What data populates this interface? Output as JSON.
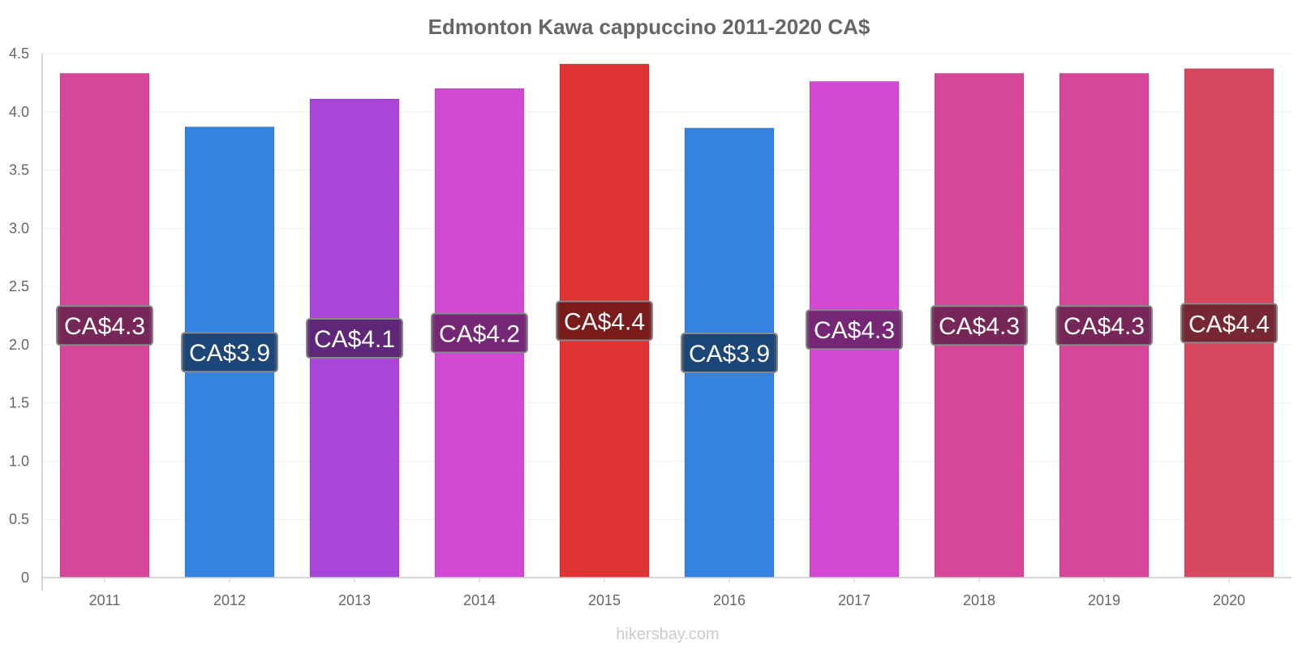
{
  "chart_data": {
    "type": "bar",
    "title": "Edmonton Kawa cappuccino 2011-2020 CA$",
    "categories": [
      "2011",
      "2012",
      "2013",
      "2014",
      "2015",
      "2016",
      "2017",
      "2018",
      "2019",
      "2020"
    ],
    "values": [
      4.33,
      3.87,
      4.11,
      4.2,
      4.41,
      3.86,
      4.26,
      4.33,
      4.33,
      4.37
    ],
    "data_labels": [
      "CA$4.3",
      "CA$3.9",
      "CA$4.1",
      "CA$4.2",
      "CA$4.4",
      "CA$3.9",
      "CA$4.3",
      "CA$4.3",
      "CA$4.3",
      "CA$4.4"
    ],
    "colors": [
      "#d6479a",
      "#3583e0",
      "#a846d9",
      "#d24ad4",
      "#e03333",
      "#3583e0",
      "#d24ad4",
      "#d6479a",
      "#d6479a",
      "#d6485f"
    ],
    "label_bg_colors": [
      "#6b2450",
      "#1a3f6b",
      "#55236d",
      "#6a246b",
      "#701a1a",
      "#1a3f6b",
      "#6a246b",
      "#6b2450",
      "#6b2450",
      "#6b2430"
    ],
    "yticks": [
      "0",
      "0.5",
      "1.0",
      "1.5",
      "2.0",
      "2.5",
      "3.0",
      "3.5",
      "4.0",
      "4.5"
    ],
    "ylim": [
      0,
      4.5
    ],
    "xlabel": "",
    "ylabel": "",
    "grid": true,
    "legend": "none"
  },
  "watermark": "hikersbay.com"
}
